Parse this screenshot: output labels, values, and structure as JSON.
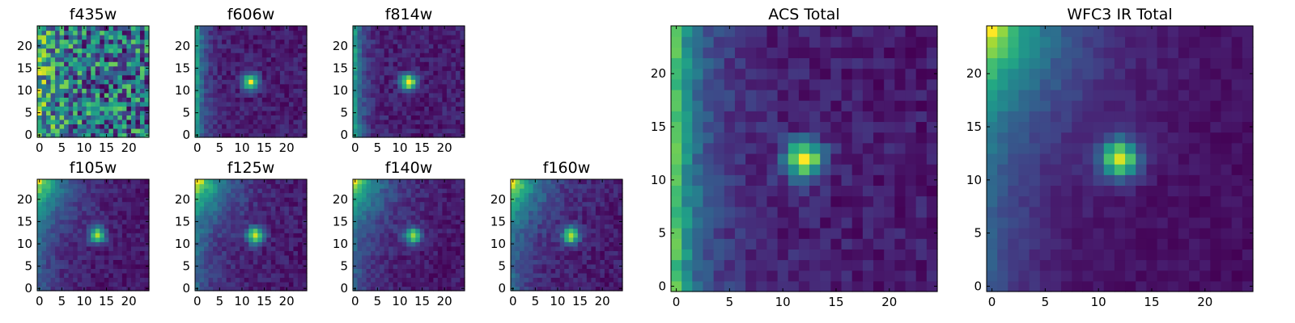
{
  "chart_data": [
    {
      "type": "heatmap",
      "title": "f435w",
      "xlim": [
        0,
        25
      ],
      "ylim": [
        0,
        25
      ],
      "xticks": [
        0,
        5,
        10,
        15,
        20
      ],
      "yticks": [
        0,
        5,
        10,
        15,
        20
      ],
      "colormap": "viridis",
      "source_peak": null,
      "left_bright_strip": "weak",
      "noise": "high"
    },
    {
      "type": "heatmap",
      "title": "f606w",
      "xlim": [
        0,
        25
      ],
      "ylim": [
        0,
        25
      ],
      "xticks": [
        0,
        5,
        10,
        15,
        20
      ],
      "yticks": [
        0,
        5,
        10,
        15,
        20
      ],
      "colormap": "viridis",
      "source_peak": [
        12,
        12
      ],
      "left_bright_strip": "medium",
      "noise": "medium"
    },
    {
      "type": "heatmap",
      "title": "f814w",
      "xlim": [
        0,
        25
      ],
      "ylim": [
        0,
        25
      ],
      "xticks": [
        0,
        5,
        10,
        15,
        20
      ],
      "yticks": [
        0,
        5,
        10,
        15,
        20
      ],
      "colormap": "viridis",
      "source_peak": [
        12,
        12
      ],
      "left_bright_strip": "medium",
      "noise": "medium"
    },
    {
      "type": "heatmap",
      "title": "f105w",
      "xlim": [
        0,
        25
      ],
      "ylim": [
        0,
        25
      ],
      "xticks": [
        0,
        5,
        10,
        15,
        20
      ],
      "yticks": [
        0,
        5,
        10,
        15,
        20
      ],
      "colormap": "viridis",
      "source_peak": [
        13,
        12
      ],
      "left_bright_strip": "corner",
      "noise": "medium"
    },
    {
      "type": "heatmap",
      "title": "f125w",
      "xlim": [
        0,
        25
      ],
      "ylim": [
        0,
        25
      ],
      "xticks": [
        0,
        5,
        10,
        15,
        20
      ],
      "yticks": [
        0,
        5,
        10,
        15,
        20
      ],
      "colormap": "viridis",
      "source_peak": [
        13,
        12
      ],
      "left_bright_strip": "corner",
      "noise": "medium"
    },
    {
      "type": "heatmap",
      "title": "f140w",
      "xlim": [
        0,
        25
      ],
      "ylim": [
        0,
        25
      ],
      "xticks": [
        0,
        5,
        10,
        15,
        20
      ],
      "yticks": [
        0,
        5,
        10,
        15,
        20
      ],
      "colormap": "viridis",
      "source_peak": [
        13,
        12
      ],
      "left_bright_strip": "corner",
      "noise": "medium"
    },
    {
      "type": "heatmap",
      "title": "f160w",
      "xlim": [
        0,
        25
      ],
      "ylim": [
        0,
        25
      ],
      "xticks": [
        0,
        5,
        10,
        15,
        20
      ],
      "yticks": [
        0,
        5,
        10,
        15,
        20
      ],
      "colormap": "viridis",
      "source_peak": [
        13,
        12
      ],
      "left_bright_strip": "corner",
      "noise": "medium"
    },
    {
      "type": "heatmap",
      "title": "ACS Total",
      "xlim": [
        0,
        25
      ],
      "ylim": [
        0,
        25
      ],
      "xticks": [
        0,
        5,
        10,
        15,
        20
      ],
      "yticks": [
        0,
        5,
        10,
        15,
        20
      ],
      "colormap": "viridis",
      "source_peak": [
        12,
        12
      ],
      "left_bright_strip": "strong",
      "noise": "medium"
    },
    {
      "type": "heatmap",
      "title": "WFC3 IR Total",
      "xlim": [
        0,
        25
      ],
      "ylim": [
        0,
        25
      ],
      "xticks": [
        0,
        5,
        10,
        15,
        20
      ],
      "yticks": [
        0,
        5,
        10,
        15,
        20
      ],
      "colormap": "viridis",
      "source_peak": [
        12,
        12
      ],
      "left_bright_strip": "corner",
      "noise": "low"
    }
  ]
}
